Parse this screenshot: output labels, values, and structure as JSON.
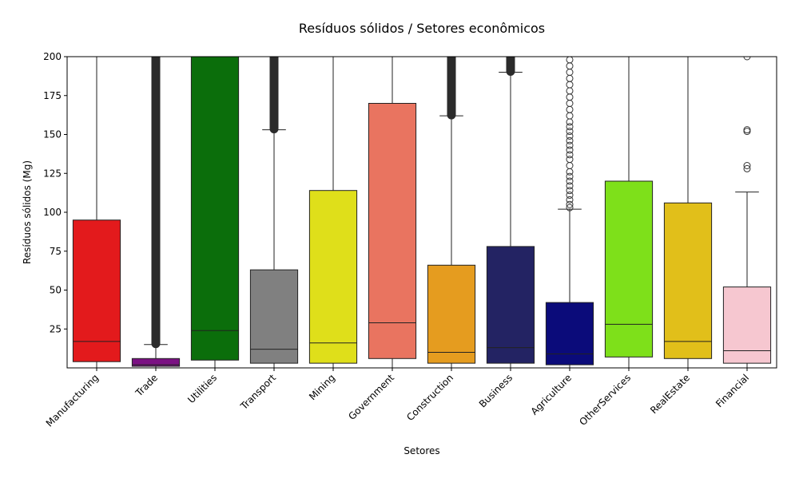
{
  "chart_data": {
    "type": "box",
    "title": "Resíduos sólidos / Setores econômicos",
    "xlabel": "Setores",
    "ylabel": "Resíduos sólidos (Mg)",
    "ylim": [
      0,
      200
    ],
    "yticks": [
      25,
      50,
      75,
      100,
      125,
      150,
      175,
      200
    ],
    "grid": false,
    "legend": "none",
    "categories": [
      {
        "name": "Manufacturing",
        "color": "#e31a1c",
        "q1": 4,
        "median": 17,
        "q3": 95,
        "whisker_low": 0,
        "whisker_high": 200,
        "outliers": []
      },
      {
        "name": "Trade",
        "color": "#7b1183",
        "q1": 1,
        "median": 2,
        "q3": 6,
        "whisker_low": 0,
        "whisker_high": 15,
        "outlier_range": [
          15,
          200
        ],
        "outliers": []
      },
      {
        "name": "Utilities",
        "color": "#0b6e0b",
        "q1": 5,
        "median": 24,
        "q3": 200,
        "whisker_low": 0,
        "whisker_high": 200,
        "outliers": []
      },
      {
        "name": "Transport",
        "color": "#808080",
        "q1": 3,
        "median": 12,
        "q3": 63,
        "whisker_low": 0,
        "whisker_high": 153,
        "outlier_range": [
          153,
          200
        ],
        "outliers": []
      },
      {
        "name": "Mining",
        "color": "#dfdf1a",
        "q1": 3,
        "median": 16,
        "q3": 114,
        "whisker_low": 0,
        "whisker_high": 200,
        "outliers": []
      },
      {
        "name": "Government",
        "color": "#e97460",
        "q1": 6,
        "median": 29,
        "q3": 170,
        "whisker_low": 0,
        "whisker_high": 200,
        "outliers": []
      },
      {
        "name": "Construction",
        "color": "#e59c1f",
        "q1": 3,
        "median": 10,
        "q3": 66,
        "whisker_low": 0,
        "whisker_high": 162,
        "outlier_range": [
          162,
          200
        ],
        "outliers": []
      },
      {
        "name": "Business",
        "color": "#232363",
        "q1": 3,
        "median": 13,
        "q3": 78,
        "whisker_low": 0,
        "whisker_high": 190,
        "outlier_range": [
          190,
          200
        ],
        "outliers": []
      },
      {
        "name": "Agriculture",
        "color": "#0b0b7a",
        "q1": 2,
        "median": 9,
        "q3": 42,
        "whisker_low": 0,
        "whisker_high": 102,
        "outliers": [
          103,
          105,
          108,
          111,
          114,
          117,
          120,
          123,
          126,
          130,
          134,
          137,
          140,
          143,
          146,
          149,
          152,
          155,
          158,
          162,
          166,
          170,
          174,
          178,
          182,
          186,
          190,
          194,
          198
        ]
      },
      {
        "name": "OtherServices",
        "color": "#7ee01a",
        "q1": 7,
        "median": 28,
        "q3": 120,
        "whisker_low": 0,
        "whisker_high": 200,
        "outliers": []
      },
      {
        "name": "RealEstate",
        "color": "#e1bf1a",
        "q1": 6,
        "median": 17,
        "q3": 106,
        "whisker_low": 0,
        "whisker_high": 200,
        "outliers": []
      },
      {
        "name": "Financial",
        "color": "#f6c7d0",
        "q1": 3,
        "median": 11,
        "q3": 52,
        "whisker_low": 0,
        "whisker_high": 113,
        "outliers": [
          128,
          130,
          152,
          153,
          200
        ]
      }
    ]
  }
}
